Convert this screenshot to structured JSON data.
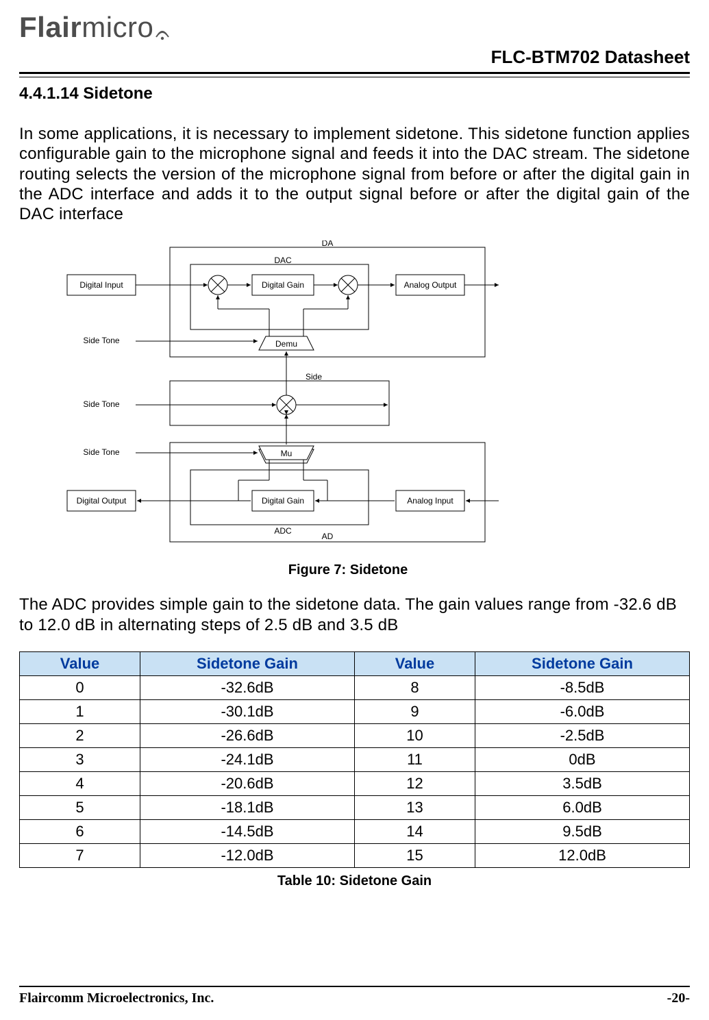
{
  "brand": {
    "name_bold": "Flair",
    "name_light": "micro"
  },
  "doc_title": "FLC-BTM702 Datasheet",
  "section": {
    "number": "4.4.1.14",
    "title": "Sidetone"
  },
  "paragraph1": "In some applications, it is necessary to implement sidetone. This sidetone function applies configurable gain to the microphone signal and feeds it into the DAC stream. The sidetone routing selects the version of the microphone signal from before or after the digital gain in the ADC interface and adds it to the output signal before or after the digital gain of the DAC interface",
  "figure": {
    "caption": "Figure 7: Sidetone",
    "blocks": {
      "da_label": "DA",
      "dac_label": "DAC",
      "digital_input": "Digital Input",
      "digital_gain_top": "Digital Gain",
      "analog_output": "Analog Output",
      "side_tone_1": "Side Tone",
      "demux_label": "Demu",
      "side_label": "Side",
      "side_tone_2": "Side Tone",
      "side_tone_3": "Side Tone",
      "mux_label": "Mu",
      "digital_output": "Digital Output",
      "digital_gain_bot": "Digital Gain",
      "analog_input": "Analog Input",
      "adc_label": "ADC",
      "ad_label": "AD"
    },
    "colors": {
      "box_stroke": "#000000",
      "bg": "#ffffff",
      "text": "#000000"
    },
    "fontsize": 12
  },
  "paragraph2": "The ADC provides simple gain to the sidetone data. The gain values range from -32.6 dB to 12.0 dB in alternating steps of 2.5 dB and 3.5 dB",
  "table": {
    "caption": "Table 10: Sidetone Gain",
    "header_bg": "#c9e1f4",
    "header_fg": "#003a9e",
    "columns": [
      "Value",
      "Sidetone Gain",
      "Value",
      "Sidetone Gain"
    ],
    "rows": [
      [
        "0",
        "-32.6dB",
        "8",
        "-8.5dB"
      ],
      [
        "1",
        "-30.1dB",
        "9",
        "-6.0dB"
      ],
      [
        "2",
        "-26.6dB",
        "10",
        "-2.5dB"
      ],
      [
        "3",
        "-24.1dB",
        "11",
        "0dB"
      ],
      [
        "4",
        "-20.6dB",
        "12",
        "3.5dB"
      ],
      [
        "5",
        "-18.1dB",
        "13",
        "6.0dB"
      ],
      [
        "6",
        "-14.5dB",
        "14",
        "9.5dB"
      ],
      [
        "7",
        "-12.0dB",
        "15",
        "12.0dB"
      ]
    ],
    "col_widths_pct": [
      18,
      32,
      18,
      32
    ]
  },
  "footer": {
    "left": "Flaircomm Microelectronics, Inc.",
    "right": "-20-"
  }
}
